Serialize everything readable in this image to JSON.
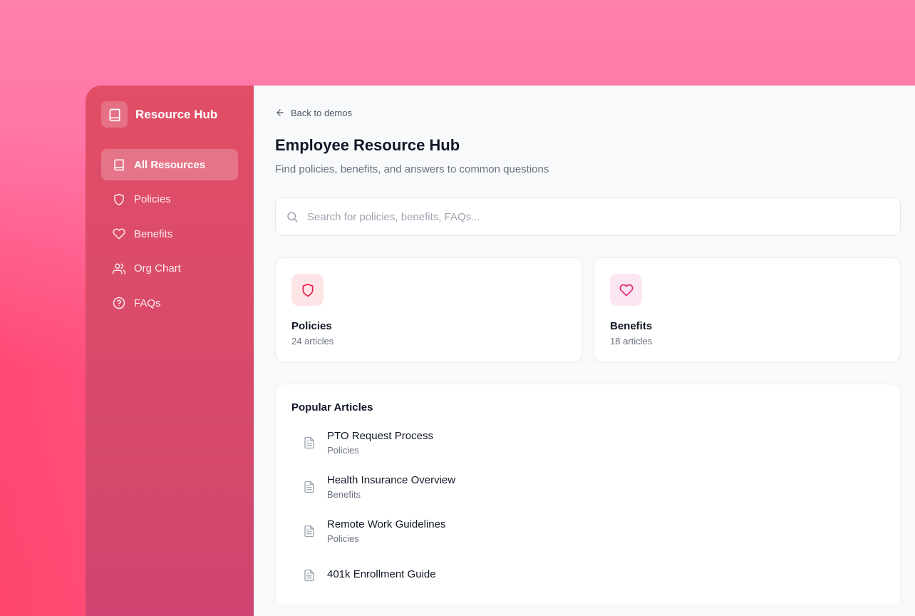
{
  "sidebar": {
    "brand": "Resource Hub",
    "items": [
      {
        "label": "All Resources",
        "icon": "book-icon",
        "active": true
      },
      {
        "label": "Policies",
        "icon": "shield-icon"
      },
      {
        "label": "Benefits",
        "icon": "heart-icon"
      },
      {
        "label": "Org Chart",
        "icon": "users-icon"
      },
      {
        "label": "FAQs",
        "icon": "help-circle-icon"
      }
    ]
  },
  "header": {
    "back": "Back to demos",
    "title": "Employee Resource Hub",
    "subtitle": "Find policies, benefits, and answers to common questions"
  },
  "search": {
    "placeholder": "Search for policies, benefits, FAQs...",
    "value": ""
  },
  "categories": [
    {
      "title": "Policies",
      "count": "24 articles",
      "icon": "shield-icon",
      "color": "#e11d48",
      "bg": "#fde4e6"
    },
    {
      "title": "Benefits",
      "count": "18 articles",
      "icon": "heart-icon",
      "color": "#db2777",
      "bg": "#fbe6f1"
    }
  ],
  "popular": {
    "title": "Popular Articles",
    "articles": [
      {
        "title": "PTO Request Process",
        "category": "Policies"
      },
      {
        "title": "Health Insurance Overview",
        "category": "Benefits"
      },
      {
        "title": "Remote Work Guidelines",
        "category": "Policies"
      },
      {
        "title": "401k Enrollment Guide",
        "category": ""
      }
    ]
  }
}
